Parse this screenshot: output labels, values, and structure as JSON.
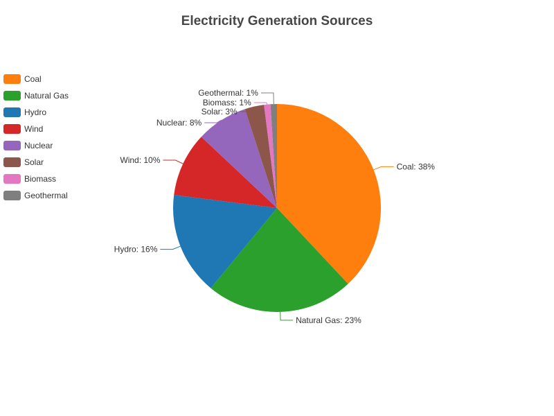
{
  "chart_data": {
    "type": "pie",
    "title": "Electricity Generation Sources",
    "legend_position": "left",
    "slices": [
      {
        "name": "Coal",
        "value": 38,
        "label": "Coal: 38%",
        "color": "#ff7f0e"
      },
      {
        "name": "Natural Gas",
        "value": 23,
        "label": "Natural Gas: 23%",
        "color": "#2ca02c"
      },
      {
        "name": "Hydro",
        "value": 16,
        "label": "Hydro: 16%",
        "color": "#1f77b4"
      },
      {
        "name": "Wind",
        "value": 10,
        "label": "Wind: 10%",
        "color": "#d62728"
      },
      {
        "name": "Nuclear",
        "value": 8,
        "label": "Nuclear: 8%",
        "color": "#9467bd"
      },
      {
        "name": "Solar",
        "value": 3,
        "label": "Solar: 3%",
        "color": "#8c564b"
      },
      {
        "name": "Biomass",
        "value": 1,
        "label": "Biomass: 1%",
        "color": "#e377c2"
      },
      {
        "name": "Geothermal",
        "value": 1,
        "label": "Geothermal: 1%",
        "color": "#7f7f7f"
      }
    ]
  }
}
